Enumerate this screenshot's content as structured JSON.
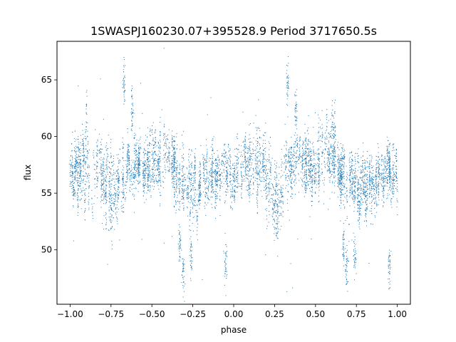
{
  "chart_data": {
    "type": "scatter",
    "title": "1SWASPJ160230.07+395528.9 Period 3717650.5s",
    "xlabel": "phase",
    "ylabel": "flux",
    "xlim": [
      -1.08,
      1.08
    ],
    "ylim": [
      45.2,
      68.4
    ],
    "xticks": [
      -1.0,
      -0.75,
      -0.5,
      -0.25,
      0.0,
      0.25,
      0.5,
      0.75,
      1.0
    ],
    "xtick_labels": [
      "−1.00",
      "−0.75",
      "−0.50",
      "−0.25",
      "0.00",
      "0.25",
      "0.50",
      "0.75",
      "1.00"
    ],
    "yticks": [
      50,
      55,
      60,
      65
    ],
    "ytick_labels": [
      "50",
      "55",
      "60",
      "65"
    ],
    "grid": false,
    "marker_color": "#1f77b4",
    "series": [
      {
        "profile": [
          {
            "x": -1.0,
            "y": 56.0,
            "spread": 2.5
          },
          {
            "x": -0.92,
            "y": 57.4,
            "spread": 2.8
          },
          {
            "x": -0.85,
            "y": 57.6,
            "spread": 2.8
          },
          {
            "x": -0.8,
            "y": 56.0,
            "spread": 3.0
          },
          {
            "x": -0.75,
            "y": 55.0,
            "spread": 3.2
          },
          {
            "x": -0.72,
            "y": 54.8,
            "spread": 2.6
          },
          {
            "x": -0.69,
            "y": 57.0,
            "spread": 2.4
          },
          {
            "x": -0.6,
            "y": 57.6,
            "spread": 2.2
          },
          {
            "x": -0.52,
            "y": 57.2,
            "spread": 2.4
          },
          {
            "x": -0.45,
            "y": 58.4,
            "spread": 2.6
          },
          {
            "x": -0.39,
            "y": 58.6,
            "spread": 2.6
          },
          {
            "x": -0.35,
            "y": 56.5,
            "spread": 2.6
          },
          {
            "x": -0.3,
            "y": 55.6,
            "spread": 2.6
          },
          {
            "x": -0.2,
            "y": 55.6,
            "spread": 2.4
          },
          {
            "x": -0.12,
            "y": 56.2,
            "spread": 2.4
          },
          {
            "x": -0.05,
            "y": 57.4,
            "spread": 2.4
          },
          {
            "x": 0.0,
            "y": 56.0,
            "spread": 2.5
          },
          {
            "x": 0.08,
            "y": 57.4,
            "spread": 2.8
          },
          {
            "x": 0.15,
            "y": 57.6,
            "spread": 2.8
          },
          {
            "x": 0.2,
            "y": 56.0,
            "spread": 3.0
          },
          {
            "x": 0.25,
            "y": 55.0,
            "spread": 3.2
          },
          {
            "x": 0.28,
            "y": 54.8,
            "spread": 2.6
          },
          {
            "x": 0.31,
            "y": 57.0,
            "spread": 2.4
          },
          {
            "x": 0.4,
            "y": 57.6,
            "spread": 2.2
          },
          {
            "x": 0.48,
            "y": 57.2,
            "spread": 2.4
          },
          {
            "x": 0.55,
            "y": 58.4,
            "spread": 2.6
          },
          {
            "x": 0.61,
            "y": 58.6,
            "spread": 2.6
          },
          {
            "x": 0.65,
            "y": 56.5,
            "spread": 2.6
          },
          {
            "x": 0.7,
            "y": 55.6,
            "spread": 2.6
          },
          {
            "x": 0.8,
            "y": 55.6,
            "spread": 2.4
          },
          {
            "x": 0.88,
            "y": 56.2,
            "spread": 2.4
          },
          {
            "x": 0.95,
            "y": 57.4,
            "spread": 2.4
          },
          {
            "x": 1.0,
            "y": 56.0,
            "spread": 2.5
          }
        ],
        "clusters": [
          {
            "x": -0.33,
            "y": 50.4
          },
          {
            "x": -0.31,
            "y": 48.0
          },
          {
            "x": -0.26,
            "y": 49.6
          },
          {
            "x": 0.67,
            "y": 50.4
          },
          {
            "x": 0.69,
            "y": 48.0
          },
          {
            "x": 0.74,
            "y": 49.6
          },
          {
            "x": -0.67,
            "y": 64.8
          },
          {
            "x": 0.33,
            "y": 64.8
          },
          {
            "x": -0.62,
            "y": 62.3
          },
          {
            "x": 0.38,
            "y": 62.3
          },
          {
            "x": -0.05,
            "y": 49.0
          },
          {
            "x": 0.95,
            "y": 48.5
          }
        ]
      }
    ]
  }
}
